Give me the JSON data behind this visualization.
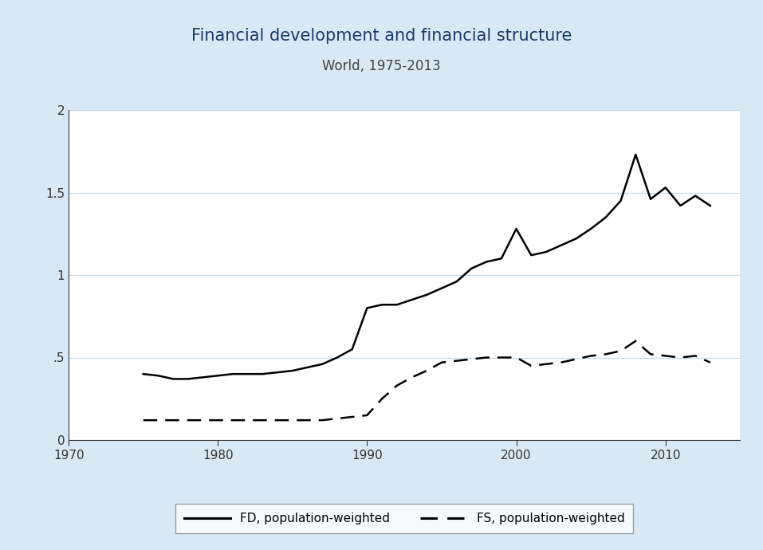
{
  "title": "Financial development and financial structure",
  "subtitle": "World, 1975-2013",
  "title_color": "#1a3a6b",
  "subtitle_color": "#333333",
  "background_color": "#d9e8f5",
  "plot_bg_color": "#ffffff",
  "xlim": [
    1970,
    2015
  ],
  "ylim": [
    0,
    2.0
  ],
  "xticks": [
    1970,
    1980,
    1990,
    2000,
    2010
  ],
  "yticks": [
    0,
    0.5,
    1.0,
    1.5,
    2.0
  ],
  "ytick_labels": [
    "0",
    ".5",
    "1",
    "1.5",
    "2"
  ],
  "fd_years": [
    1975,
    1976,
    1977,
    1978,
    1979,
    1980,
    1981,
    1982,
    1983,
    1984,
    1985,
    1986,
    1987,
    1988,
    1989,
    1990,
    1991,
    1992,
    1993,
    1994,
    1995,
    1996,
    1997,
    1998,
    1999,
    2000,
    2001,
    2002,
    2003,
    2004,
    2005,
    2006,
    2007,
    2008,
    2009,
    2010,
    2011,
    2012,
    2013
  ],
  "fd_values": [
    0.4,
    0.39,
    0.37,
    0.37,
    0.38,
    0.39,
    0.4,
    0.4,
    0.4,
    0.41,
    0.42,
    0.44,
    0.46,
    0.5,
    0.55,
    0.8,
    0.82,
    0.82,
    0.85,
    0.88,
    0.92,
    0.96,
    1.04,
    1.08,
    1.1,
    1.28,
    1.12,
    1.14,
    1.18,
    1.22,
    1.28,
    1.35,
    1.45,
    1.73,
    1.46,
    1.53,
    1.42,
    1.48,
    1.42
  ],
  "fs_years": [
    1975,
    1976,
    1977,
    1978,
    1979,
    1980,
    1981,
    1982,
    1983,
    1984,
    1985,
    1986,
    1987,
    1988,
    1989,
    1990,
    1991,
    1992,
    1993,
    1994,
    1995,
    1996,
    1997,
    1998,
    1999,
    2000,
    2001,
    2002,
    2003,
    2004,
    2005,
    2006,
    2007,
    2008,
    2009,
    2010,
    2011,
    2012,
    2013
  ],
  "fs_values": [
    0.12,
    0.12,
    0.12,
    0.12,
    0.12,
    0.12,
    0.12,
    0.12,
    0.12,
    0.12,
    0.12,
    0.12,
    0.12,
    0.13,
    0.14,
    0.15,
    0.25,
    0.33,
    0.38,
    0.42,
    0.47,
    0.48,
    0.49,
    0.5,
    0.5,
    0.5,
    0.45,
    0.46,
    0.47,
    0.49,
    0.51,
    0.52,
    0.54,
    0.6,
    0.52,
    0.51,
    0.5,
    0.51,
    0.47
  ],
  "fd_label": "FD, population-weighted",
  "fs_label": "FS, population-weighted",
  "line_color": "#000000",
  "grid_color": "#c8d8ea",
  "line_width": 1.8,
  "legend_bg": "#ffffff",
  "legend_edge": "#888888"
}
